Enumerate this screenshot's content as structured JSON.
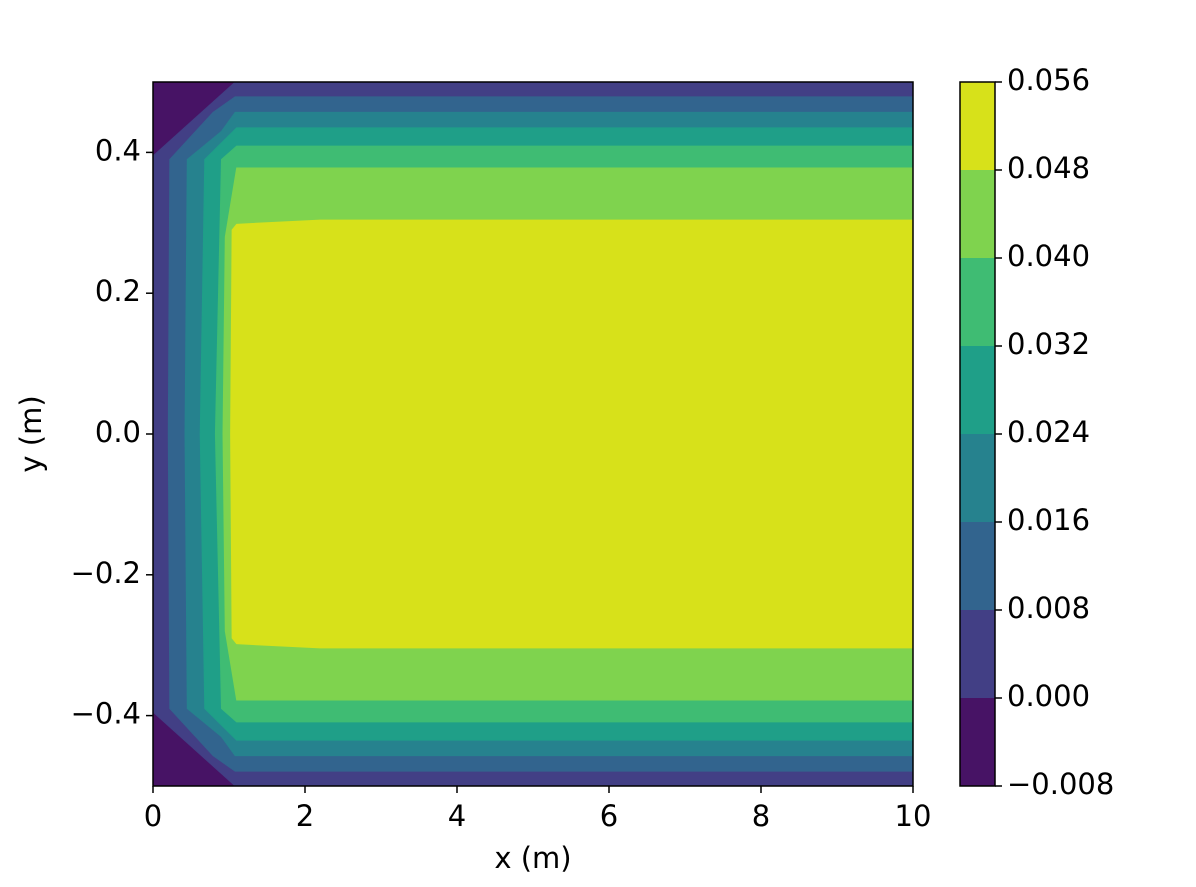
{
  "chart_data": {
    "type": "contourf",
    "xlabel": "x (m)",
    "ylabel": "y (m)",
    "xlim": [
      0,
      10
    ],
    "ylim": [
      -0.5,
      0.5
    ],
    "xticks": [
      0,
      2,
      4,
      6,
      8,
      10
    ],
    "yticks": [
      {
        "value": -0.4,
        "label": "−0.4"
      },
      {
        "value": -0.2,
        "label": "−0.2"
      },
      {
        "value": 0,
        "label": "0.0"
      },
      0.2,
      0.4
    ],
    "levels": [
      -0.008,
      0,
      0.008,
      0.016,
      0.024,
      0.032,
      0.04,
      0.048,
      0.056
    ],
    "colorbar_ticks": [
      {
        "value": -0.008,
        "label": "−0.008"
      },
      {
        "value": 0,
        "label": "0.000"
      },
      {
        "value": 0.008,
        "label": "0.008"
      },
      {
        "value": 0.016,
        "label": "0.016"
      },
      {
        "value": 0.024,
        "label": "0.024"
      },
      {
        "value": 0.032,
        "label": "0.032"
      },
      {
        "value": 0.04,
        "label": "0.040"
      },
      {
        "value": 0.048,
        "label": "0.048"
      },
      0.056
    ],
    "colors": [
      "#471365",
      "#423f85",
      "#32648e",
      "#26828e",
      "#1f9f88",
      "#3fbc73",
      "#7fd34e",
      "#d7e11a"
    ],
    "regions": [
      {
        "x": [
          10,
          1.08,
          0,
          0,
          1.08,
          10
        ],
        "y": [
          -0.5,
          -0.5,
          -0.395,
          0.395,
          0.5,
          0.5
        ]
      },
      {
        "x": [
          10,
          1.08,
          0.79,
          0.22,
          0.2,
          0.22,
          0.79,
          1.08,
          10
        ],
        "y": [
          -0.479,
          -0.479,
          -0.457,
          -0.39,
          0,
          0.39,
          0.457,
          0.479,
          0.479
        ]
      },
      {
        "x": [
          10,
          1.08,
          0.9,
          0.45,
          0.42,
          0.45,
          0.9,
          1.08,
          10
        ],
        "y": [
          -0.457,
          -0.457,
          -0.43,
          -0.39,
          0,
          0.39,
          0.43,
          0.457,
          0.457
        ]
      },
      {
        "x": [
          10,
          1.1,
          0.68,
          0.62,
          0.68,
          1.1,
          10
        ],
        "y": [
          -0.435,
          -0.435,
          -0.39,
          0,
          0.39,
          0.435,
          0.435
        ]
      },
      {
        "x": [
          10,
          1.1,
          0.9,
          0.82,
          0.9,
          1.1,
          10
        ],
        "y": [
          -0.409,
          -0.409,
          -0.39,
          0,
          0.39,
          0.409,
          0.409
        ]
      },
      {
        "x": [
          10,
          1.1,
          0.95,
          0.92,
          0.95,
          1.1,
          10
        ],
        "y": [
          -0.378,
          -0.378,
          -0.28,
          0,
          0.28,
          0.378,
          0.378
        ]
      },
      {
        "x": [
          10,
          2.2,
          1.1,
          1.04,
          1.02,
          1.04,
          1.1,
          2.2,
          10
        ],
        "y": [
          -0.304,
          -0.304,
          -0.298,
          -0.29,
          0,
          0.29,
          0.298,
          0.304,
          0.304
        ]
      }
    ]
  }
}
